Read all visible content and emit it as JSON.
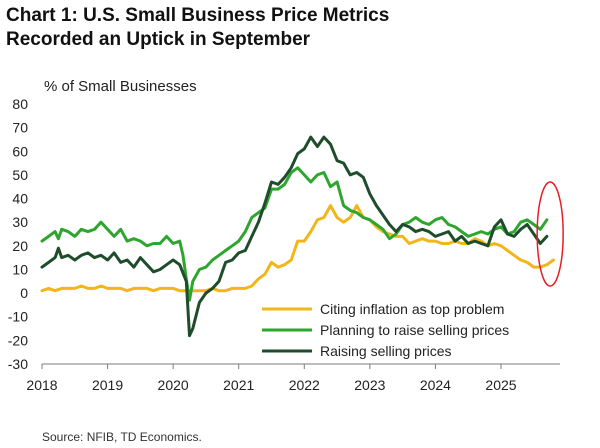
{
  "title_line1": "Chart 1: U.S. Small Business Price Metrics",
  "title_line2": "Recorded an Uptick in September",
  "source": "Source: NFIB, TD Economics.",
  "colors": {
    "inflation": "#f2b61b",
    "planning": "#2ea52e",
    "raising": "#1f4d2b",
    "ellipse": "#e81e25",
    "axis": "#7a7a7a"
  },
  "chart_data": {
    "type": "line",
    "ylabel": "% of Small Businesses",
    "ylim": [
      -30,
      80
    ],
    "yticks": [
      -30,
      -20,
      -10,
      0,
      10,
      20,
      30,
      40,
      50,
      60,
      70,
      80
    ],
    "xlim": [
      2018,
      2025.9
    ],
    "xticks": [
      "2018",
      "2019",
      "2020",
      "2021",
      "2022",
      "2023",
      "2024",
      "2025"
    ],
    "grid": false,
    "legend_position": "bottom-center",
    "annotation": "red ellipse around Aug-Sep 2025 values",
    "series": [
      {
        "name": "Citing inflation as top problem",
        "color_key": "inflation",
        "points": [
          [
            2018.0,
            1
          ],
          [
            2018.1,
            2
          ],
          [
            2018.2,
            1
          ],
          [
            2018.3,
            2
          ],
          [
            2018.4,
            2
          ],
          [
            2018.5,
            2
          ],
          [
            2018.6,
            3
          ],
          [
            2018.7,
            2
          ],
          [
            2018.8,
            2
          ],
          [
            2018.9,
            3
          ],
          [
            2019.0,
            2
          ],
          [
            2019.1,
            2
          ],
          [
            2019.2,
            2
          ],
          [
            2019.3,
            1
          ],
          [
            2019.4,
            2
          ],
          [
            2019.5,
            2
          ],
          [
            2019.6,
            2
          ],
          [
            2019.7,
            1
          ],
          [
            2019.8,
            2
          ],
          [
            2019.9,
            2
          ],
          [
            2020.0,
            2
          ],
          [
            2020.1,
            1
          ],
          [
            2020.2,
            1
          ],
          [
            2020.3,
            1
          ],
          [
            2020.4,
            1
          ],
          [
            2020.5,
            1
          ],
          [
            2020.6,
            2
          ],
          [
            2020.7,
            1
          ],
          [
            2020.8,
            1
          ],
          [
            2020.9,
            2
          ],
          [
            2021.0,
            2
          ],
          [
            2021.1,
            2
          ],
          [
            2021.2,
            3
          ],
          [
            2021.3,
            6
          ],
          [
            2021.4,
            8
          ],
          [
            2021.5,
            13
          ],
          [
            2021.6,
            11
          ],
          [
            2021.7,
            12
          ],
          [
            2021.8,
            14
          ],
          [
            2021.9,
            22
          ],
          [
            2022.0,
            22
          ],
          [
            2022.1,
            26
          ],
          [
            2022.2,
            31
          ],
          [
            2022.3,
            32
          ],
          [
            2022.4,
            37
          ],
          [
            2022.5,
            32
          ],
          [
            2022.6,
            30
          ],
          [
            2022.7,
            32
          ],
          [
            2022.8,
            37
          ],
          [
            2022.9,
            32
          ],
          [
            2023.0,
            31
          ],
          [
            2023.1,
            28
          ],
          [
            2023.2,
            26
          ],
          [
            2023.3,
            25
          ],
          [
            2023.4,
            24
          ],
          [
            2023.5,
            24
          ],
          [
            2023.6,
            21
          ],
          [
            2023.7,
            22
          ],
          [
            2023.8,
            23
          ],
          [
            2023.9,
            22
          ],
          [
            2024.0,
            22
          ],
          [
            2024.1,
            21
          ],
          [
            2024.2,
            21
          ],
          [
            2024.3,
            22
          ],
          [
            2024.4,
            21
          ],
          [
            2024.5,
            21
          ],
          [
            2024.6,
            23
          ],
          [
            2024.7,
            22
          ],
          [
            2024.8,
            20
          ],
          [
            2024.9,
            21
          ],
          [
            2025.0,
            20
          ],
          [
            2025.1,
            18
          ],
          [
            2025.2,
            16
          ],
          [
            2025.3,
            14
          ],
          [
            2025.4,
            13
          ],
          [
            2025.5,
            11
          ],
          [
            2025.6,
            11
          ],
          [
            2025.7,
            12
          ],
          [
            2025.8,
            14
          ]
        ]
      },
      {
        "name": "Planning to raise selling prices",
        "color_key": "planning",
        "points": [
          [
            2018.0,
            22
          ],
          [
            2018.1,
            24
          ],
          [
            2018.2,
            26
          ],
          [
            2018.25,
            23
          ],
          [
            2018.3,
            27
          ],
          [
            2018.4,
            26
          ],
          [
            2018.5,
            24
          ],
          [
            2018.6,
            27
          ],
          [
            2018.7,
            26
          ],
          [
            2018.8,
            27
          ],
          [
            2018.9,
            30
          ],
          [
            2019.0,
            27
          ],
          [
            2019.1,
            24
          ],
          [
            2019.2,
            27
          ],
          [
            2019.3,
            22
          ],
          [
            2019.4,
            23
          ],
          [
            2019.5,
            22
          ],
          [
            2019.6,
            20
          ],
          [
            2019.7,
            21
          ],
          [
            2019.8,
            21
          ],
          [
            2019.9,
            24
          ],
          [
            2020.0,
            21
          ],
          [
            2020.1,
            22
          ],
          [
            2020.15,
            16
          ],
          [
            2020.2,
            6
          ],
          [
            2020.25,
            -3
          ],
          [
            2020.3,
            5
          ],
          [
            2020.4,
            10
          ],
          [
            2020.5,
            11
          ],
          [
            2020.6,
            14
          ],
          [
            2020.7,
            16
          ],
          [
            2020.8,
            18
          ],
          [
            2020.9,
            20
          ],
          [
            2021.0,
            22
          ],
          [
            2021.1,
            26
          ],
          [
            2021.2,
            32
          ],
          [
            2021.3,
            34
          ],
          [
            2021.4,
            36
          ],
          [
            2021.5,
            44
          ],
          [
            2021.6,
            44
          ],
          [
            2021.7,
            46
          ],
          [
            2021.8,
            51
          ],
          [
            2021.9,
            53
          ],
          [
            2022.0,
            50
          ],
          [
            2022.1,
            47
          ],
          [
            2022.2,
            50
          ],
          [
            2022.3,
            51
          ],
          [
            2022.4,
            45
          ],
          [
            2022.5,
            47
          ],
          [
            2022.6,
            37
          ],
          [
            2022.7,
            35
          ],
          [
            2022.8,
            34
          ],
          [
            2022.9,
            32
          ],
          [
            2023.0,
            31
          ],
          [
            2023.1,
            29
          ],
          [
            2023.2,
            27
          ],
          [
            2023.3,
            23
          ],
          [
            2023.4,
            25
          ],
          [
            2023.5,
            29
          ],
          [
            2023.6,
            30
          ],
          [
            2023.7,
            32
          ],
          [
            2023.8,
            30
          ],
          [
            2023.9,
            29
          ],
          [
            2024.0,
            31
          ],
          [
            2024.1,
            32
          ],
          [
            2024.2,
            29
          ],
          [
            2024.3,
            28
          ],
          [
            2024.4,
            26
          ],
          [
            2024.5,
            24
          ],
          [
            2024.6,
            25
          ],
          [
            2024.7,
            26
          ],
          [
            2024.8,
            25
          ],
          [
            2024.9,
            27
          ],
          [
            2025.0,
            28
          ],
          [
            2025.1,
            25
          ],
          [
            2025.2,
            26
          ],
          [
            2025.3,
            30
          ],
          [
            2025.4,
            31
          ],
          [
            2025.5,
            29
          ],
          [
            2025.6,
            27
          ],
          [
            2025.7,
            31
          ]
        ]
      },
      {
        "name": "Raising selling prices",
        "color_key": "raising",
        "points": [
          [
            2018.0,
            11
          ],
          [
            2018.1,
            13
          ],
          [
            2018.2,
            15
          ],
          [
            2018.25,
            19
          ],
          [
            2018.3,
            15
          ],
          [
            2018.4,
            16
          ],
          [
            2018.5,
            14
          ],
          [
            2018.6,
            16
          ],
          [
            2018.7,
            17
          ],
          [
            2018.8,
            15
          ],
          [
            2018.9,
            16
          ],
          [
            2019.0,
            14
          ],
          [
            2019.1,
            17
          ],
          [
            2019.2,
            13
          ],
          [
            2019.3,
            14
          ],
          [
            2019.4,
            11
          ],
          [
            2019.5,
            15
          ],
          [
            2019.6,
            12
          ],
          [
            2019.7,
            9
          ],
          [
            2019.8,
            10
          ],
          [
            2019.9,
            12
          ],
          [
            2020.0,
            14
          ],
          [
            2020.1,
            12
          ],
          [
            2020.2,
            5
          ],
          [
            2020.25,
            -18
          ],
          [
            2020.3,
            -15
          ],
          [
            2020.4,
            -4
          ],
          [
            2020.5,
            0
          ],
          [
            2020.6,
            2
          ],
          [
            2020.7,
            5
          ],
          [
            2020.8,
            13
          ],
          [
            2020.9,
            14
          ],
          [
            2021.0,
            17
          ],
          [
            2021.1,
            18
          ],
          [
            2021.2,
            24
          ],
          [
            2021.3,
            30
          ],
          [
            2021.4,
            38
          ],
          [
            2021.5,
            47
          ],
          [
            2021.6,
            46
          ],
          [
            2021.7,
            49
          ],
          [
            2021.8,
            53
          ],
          [
            2021.9,
            59
          ],
          [
            2022.0,
            61
          ],
          [
            2022.1,
            66
          ],
          [
            2022.2,
            62
          ],
          [
            2022.3,
            66
          ],
          [
            2022.4,
            63
          ],
          [
            2022.5,
            56
          ],
          [
            2022.6,
            55
          ],
          [
            2022.7,
            50
          ],
          [
            2022.8,
            51
          ],
          [
            2022.9,
            49
          ],
          [
            2023.0,
            42
          ],
          [
            2023.1,
            37
          ],
          [
            2023.2,
            33
          ],
          [
            2023.3,
            29
          ],
          [
            2023.4,
            26
          ],
          [
            2023.5,
            29
          ],
          [
            2023.6,
            28
          ],
          [
            2023.7,
            26
          ],
          [
            2023.8,
            27
          ],
          [
            2023.9,
            26
          ],
          [
            2024.0,
            24
          ],
          [
            2024.1,
            25
          ],
          [
            2024.2,
            26
          ],
          [
            2024.3,
            22
          ],
          [
            2024.4,
            24
          ],
          [
            2024.5,
            21
          ],
          [
            2024.6,
            22
          ],
          [
            2024.7,
            21
          ],
          [
            2024.8,
            20
          ],
          [
            2024.9,
            28
          ],
          [
            2025.0,
            31
          ],
          [
            2025.1,
            25
          ],
          [
            2025.2,
            24
          ],
          [
            2025.3,
            27
          ],
          [
            2025.4,
            29
          ],
          [
            2025.5,
            25
          ],
          [
            2025.6,
            21
          ],
          [
            2025.7,
            24
          ]
        ]
      }
    ]
  }
}
